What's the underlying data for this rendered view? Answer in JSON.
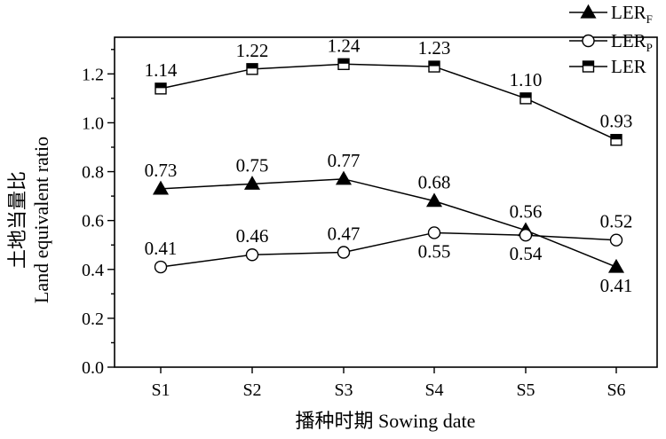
{
  "chart_data": {
    "type": "line",
    "xlabel": "播种时期 Sowing date",
    "ylabel_cn": "土地当量比",
    "ylabel_en": "Land equivalent ratio",
    "categories": [
      "S1",
      "S2",
      "S3",
      "S4",
      "S5",
      "S6"
    ],
    "ylim": [
      0.0,
      1.35
    ],
    "yticks": [
      "0.0",
      "0.2",
      "0.4",
      "0.6",
      "0.8",
      "1.0",
      "1.2"
    ],
    "grid": false,
    "legend_position": "top-right",
    "series": [
      {
        "name": "LER",
        "name_sub": "F",
        "marker": "triangle",
        "values": [
          0.73,
          0.75,
          0.77,
          0.68,
          0.56,
          0.41
        ],
        "labels": [
          "0.73",
          "0.75",
          "0.77",
          "0.68",
          "0.56",
          "0.41"
        ],
        "label_pos": [
          "above",
          "above",
          "above",
          "above",
          "above",
          "below"
        ]
      },
      {
        "name": "LER",
        "name_sub": "P",
        "marker": "circle",
        "values": [
          0.41,
          0.46,
          0.47,
          0.55,
          0.54,
          0.52
        ],
        "labels": [
          "0.41",
          "0.46",
          "0.47",
          "0.55",
          "0.54",
          "0.52"
        ],
        "label_pos": [
          "above",
          "above",
          "above",
          "below",
          "below",
          "above"
        ]
      },
      {
        "name": "LER",
        "name_sub": "",
        "marker": "square",
        "values": [
          1.14,
          1.22,
          1.24,
          1.23,
          1.1,
          0.93
        ],
        "labels": [
          "1.14",
          "1.22",
          "1.24",
          "1.23",
          "1.10",
          "0.93"
        ],
        "label_pos": [
          "above",
          "above",
          "above",
          "above",
          "above",
          "above"
        ]
      }
    ]
  }
}
